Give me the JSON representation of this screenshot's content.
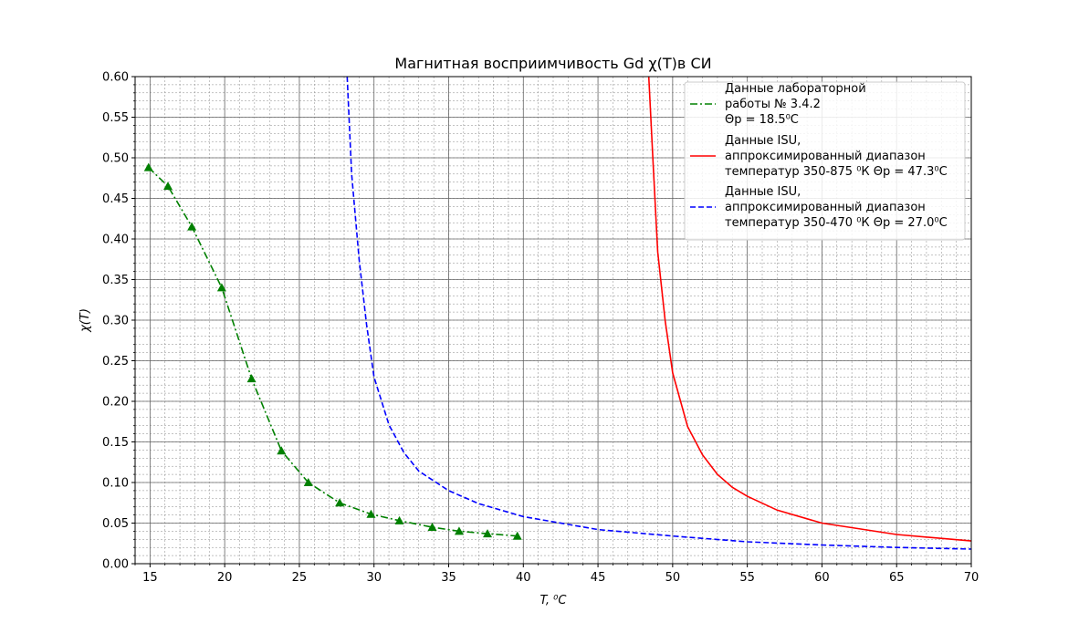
{
  "chart_data": {
    "type": "line",
    "title": "Магнитная восприимчивость Gd χ(T)в СИ",
    "xlabel": "T, ⁰C",
    "ylabel": "χ(T)",
    "xlim": [
      14,
      70
    ],
    "ylim": [
      0.0,
      0.6
    ],
    "xticks": [
      "15",
      "20",
      "25",
      "30",
      "35",
      "40",
      "45",
      "50",
      "55",
      "60",
      "65",
      "70"
    ],
    "yticks": [
      "0.00",
      "0.05",
      "0.10",
      "0.15",
      "0.20",
      "0.25",
      "0.30",
      "0.35",
      "0.40",
      "0.45",
      "0.50",
      "0.55",
      "0.60"
    ],
    "grid": true,
    "minor_grid": true,
    "legend_position": "top-right",
    "series": [
      {
        "name_lines": [
          "Данные лабораторной",
          " работы № 3.4.2",
          "Θp = 18.5⁰C"
        ],
        "color": "#008000",
        "style": "dash-dot",
        "marker": "triangle",
        "x": [
          14.9,
          16.2,
          17.8,
          19.8,
          21.8,
          23.8,
          25.6,
          27.7,
          29.8,
          31.7,
          33.9,
          35.7,
          37.6,
          39.6
        ],
        "y": [
          0.488,
          0.465,
          0.415,
          0.34,
          0.228,
          0.139,
          0.1,
          0.075,
          0.061,
          0.053,
          0.045,
          0.04,
          0.037,
          0.034
        ]
      },
      {
        "name_lines": [
          "Данные ISU,",
          "аппроксимированный диапазон",
          "температур 350-875 ⁰К Θp = 47.3⁰C"
        ],
        "color": "#ff0000",
        "style": "solid",
        "x": [
          48.4,
          48.7,
          49.0,
          49.5,
          50.0,
          51.0,
          52.0,
          53.0,
          54.0,
          55.0,
          57.0,
          60.0,
          65.0,
          70.0
        ],
        "y": [
          0.6,
          0.49,
          0.384,
          0.299,
          0.235,
          0.169,
          0.134,
          0.11,
          0.094,
          0.083,
          0.066,
          0.05,
          0.036,
          0.028
        ]
      },
      {
        "name_lines": [
          "Данные ISU,",
          "аппроксимированный диапазон",
          "температур 350-470 ⁰К Θp = 27.0⁰C"
        ],
        "color": "#0000ff",
        "style": "dashed",
        "x": [
          28.2,
          28.5,
          29.0,
          29.5,
          30.0,
          31.0,
          32.0,
          33.0,
          35.0,
          37.0,
          40.0,
          45.0,
          50.0,
          55.0,
          60.0,
          65.0,
          70.0
        ],
        "y": [
          0.6,
          0.48,
          0.375,
          0.295,
          0.23,
          0.171,
          0.137,
          0.114,
          0.09,
          0.074,
          0.058,
          0.042,
          0.034,
          0.027,
          0.023,
          0.02,
          0.018
        ]
      }
    ]
  }
}
